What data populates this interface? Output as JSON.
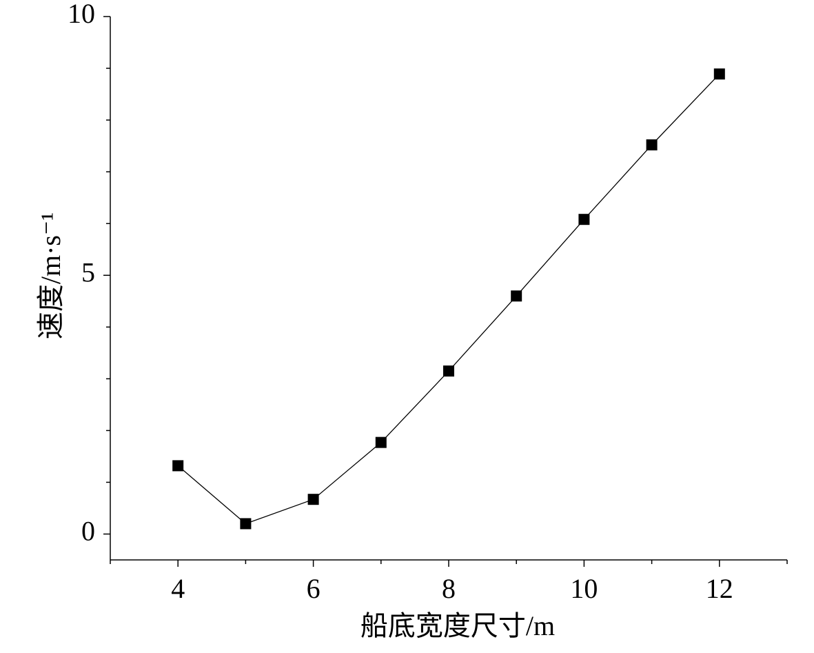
{
  "chart_data": {
    "type": "line",
    "x_label": "船底宽度尺寸/m",
    "y_label": "速度/m·s⁻¹",
    "x": [
      4,
      5,
      6,
      7,
      8,
      9,
      10,
      11,
      12
    ],
    "series": [
      {
        "color": "#000000",
        "marker": "square",
        "values": [
          1.32,
          0.2,
          0.67,
          1.77,
          3.15,
          4.6,
          6.08,
          7.52,
          8.89
        ]
      }
    ],
    "xlim": [
      3,
      13
    ],
    "xticks": [
      4,
      6,
      8,
      10,
      12
    ],
    "xminorticks": [
      3,
      5,
      7,
      9,
      11,
      13
    ],
    "ylim": [
      -0.5,
      10
    ],
    "yticks": [
      0,
      5,
      10
    ],
    "yminorticks": [
      1,
      2,
      3,
      4,
      6,
      7,
      8,
      9
    ],
    "grid": false
  }
}
